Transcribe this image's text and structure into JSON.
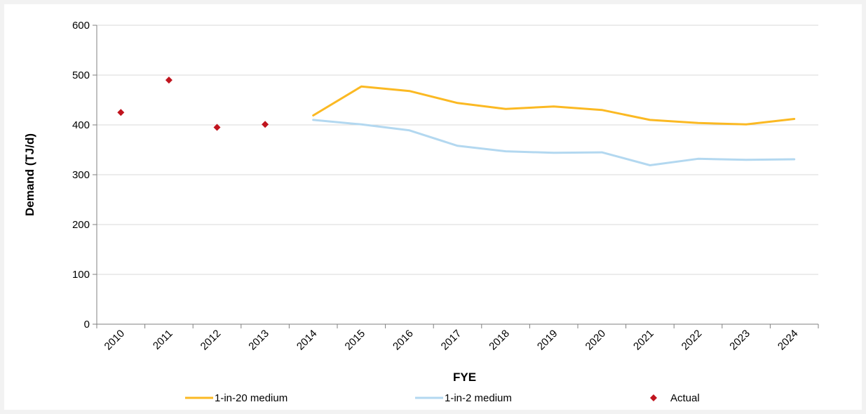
{
  "chart_data": {
    "type": "line",
    "title": "",
    "xlabel": "FYE",
    "ylabel": "Demand (TJ/d)",
    "ylim": [
      0,
      600
    ],
    "yticks": [
      0,
      100,
      200,
      300,
      400,
      500,
      600
    ],
    "grid": true,
    "legend_position": "bottom",
    "categories": [
      "2010",
      "2011",
      "2012",
      "2013",
      "2014",
      "2015",
      "2016",
      "2017",
      "2018",
      "2019",
      "2020",
      "2021",
      "2022",
      "2023",
      "2024"
    ],
    "series": [
      {
        "name": "1-in-20 medium",
        "style": "line",
        "color": "#fbb923",
        "values": [
          null,
          null,
          null,
          null,
          419,
          477,
          468,
          444,
          432,
          437,
          430,
          410,
          404,
          401,
          412
        ]
      },
      {
        "name": "1-in-2 medium",
        "style": "line",
        "color": "#b3d8f0",
        "values": [
          null,
          null,
          null,
          null,
          410,
          401,
          389,
          358,
          347,
          344,
          345,
          319,
          332,
          330,
          331
        ]
      },
      {
        "name": "Actual",
        "style": "marker",
        "marker": "diamond",
        "color": "#c0141e",
        "values": [
          425,
          490,
          395,
          401,
          null,
          null,
          null,
          null,
          null,
          null,
          null,
          null,
          null,
          null,
          null
        ]
      }
    ]
  },
  "colors": {
    "axis": "#808080",
    "grid": "#d9d9d9",
    "background": "#ffffff",
    "page": "#f2f2f2"
  }
}
